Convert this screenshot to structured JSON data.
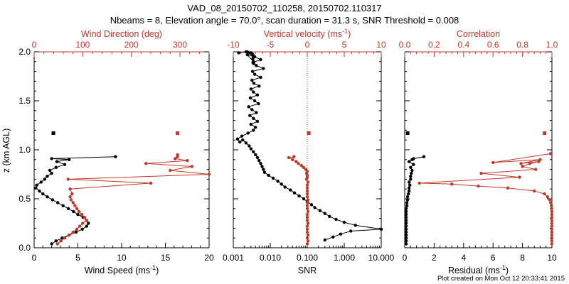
{
  "title": {
    "line1": "VAD_08_20150702_110258, 20150702.110317",
    "line2": "Nbeams = 8, Elevation angle = 70.0°, scan duration = 31.3 s, SNR Threshold = 0.008"
  },
  "footer": "Plot created on Mon Oct 12 20:33:41 2015",
  "colors": {
    "black": "#000000",
    "red": "#c0392b"
  },
  "chart_data": [
    {
      "type": "line",
      "panel": "wind",
      "ylabel": "z (km AGL)",
      "ylim": [
        0,
        2
      ],
      "yticks": [
        "0.0",
        "0.5",
        "1.0",
        "1.5",
        "2.0"
      ],
      "bottom_axis": {
        "label": "Wind Speed (ms",
        "sup": "-1",
        "close": ")",
        "lim": [
          0,
          20
        ],
        "ticks": [
          "0",
          "5",
          "10",
          "15",
          "20"
        ]
      },
      "top_axis": {
        "label": "Wind Direction (deg)",
        "lim": [
          0,
          360
        ],
        "ticks": [
          "0",
          "100",
          "200",
          "300"
        ]
      },
      "series": [
        {
          "name": "Wind Speed",
          "axis": "bottom",
          "color": "black",
          "x": [
            2.0,
            2.5,
            3.2,
            4.0,
            4.8,
            5.5,
            6.0,
            6.2,
            6.0,
            5.6,
            5.0,
            4.5,
            3.9,
            3.3,
            2.7,
            2.1,
            1.5,
            1.0,
            0.6,
            0.2,
            0.3,
            0.8,
            1.2,
            1.5,
            2.0,
            1.8,
            2.5,
            3.5,
            2.6,
            4.0,
            2.0,
            9.3
          ],
          "y": [
            0.04,
            0.07,
            0.1,
            0.13,
            0.16,
            0.19,
            0.22,
            0.25,
            0.28,
            0.31,
            0.34,
            0.37,
            0.4,
            0.43,
            0.46,
            0.49,
            0.52,
            0.55,
            0.58,
            0.61,
            0.64,
            0.67,
            0.7,
            0.73,
            0.76,
            0.79,
            0.82,
            0.85,
            0.88,
            0.9,
            0.91,
            0.93
          ],
          "outlier": {
            "x": 2.2,
            "y": 1.17
          }
        },
        {
          "name": "Wind Direction",
          "axis": "top",
          "color": "red",
          "x": [
            48,
            55,
            63,
            72,
            80,
            88,
            94,
            100,
            108,
            104,
            98,
            92,
            88,
            84,
            80,
            76,
            74,
            78,
            74,
            240,
            70,
            360,
            280,
            325,
            230,
            315,
            290,
            295,
            295
          ],
          "y": [
            0.04,
            0.07,
            0.1,
            0.13,
            0.16,
            0.19,
            0.22,
            0.25,
            0.28,
            0.31,
            0.34,
            0.37,
            0.4,
            0.43,
            0.46,
            0.49,
            0.52,
            0.55,
            0.6,
            0.66,
            0.7,
            0.75,
            0.79,
            0.83,
            0.86,
            0.89,
            0.91,
            0.93,
            0.95
          ],
          "outlier": {
            "x": 295,
            "y": 1.17
          }
        }
      ]
    },
    {
      "type": "line",
      "panel": "snr",
      "ylim": [
        0,
        2
      ],
      "bottom_axis": {
        "label": "SNR",
        "scale": "log",
        "lim": [
          0.001,
          10
        ],
        "ticks": [
          "0.001",
          "0.010",
          "0.100",
          "1.000",
          "10.000"
        ]
      },
      "top_axis": {
        "label": "Vertical velocity (ms",
        "sup": "-1",
        "close": ")",
        "lim": [
          -10,
          10
        ],
        "ticks": [
          "-10",
          "-5",
          "0",
          "5",
          "10"
        ],
        "zero_line": true
      },
      "series": [
        {
          "name": "SNR",
          "axis": "bottom",
          "color": "black",
          "x": [
            0.3,
            0.5,
            0.8,
            1.5,
            10,
            2.0,
            1.0,
            0.6,
            0.4,
            0.3,
            0.22,
            0.16,
            0.13,
            0.1,
            0.08,
            0.06,
            0.045,
            0.035,
            0.025,
            0.02,
            0.016,
            0.012,
            0.009,
            0.007,
            0.0065,
            0.006,
            0.0055,
            0.005,
            0.0045,
            0.004,
            0.0035,
            0.003,
            0.0027,
            0.0022,
            0.0018,
            0.0015,
            0.0013,
            0.0017,
            0.0025,
            0.0035,
            0.004,
            0.003,
            0.0045,
            0.0035,
            0.0028,
            0.0042,
            0.0032,
            0.0026,
            0.0048,
            0.0038,
            0.0029,
            0.0045,
            0.0035,
            0.003,
            0.005,
            0.0036,
            0.0032,
            0.0055,
            0.0038,
            0.0033,
            0.0065,
            0.0042,
            0.0034,
            0.0055,
            0.0038,
            0.0024,
            0.0035,
            0.0036,
            0.0034,
            0.0035,
            0.0034,
            0.0034,
            0.0032,
            0.003,
            0.0028,
            0.0024,
            0.0022,
            0.0014
          ],
          "y": [
            0.08,
            0.11,
            0.14,
            0.17,
            0.19,
            0.23,
            0.26,
            0.29,
            0.32,
            0.35,
            0.38,
            0.41,
            0.44,
            0.47,
            0.5,
            0.53,
            0.56,
            0.59,
            0.62,
            0.65,
            0.68,
            0.71,
            0.74,
            0.77,
            0.8,
            0.83,
            0.86,
            0.89,
            0.92,
            0.95,
            0.98,
            1.01,
            1.04,
            1.07,
            1.1,
            1.08,
            1.11,
            1.14,
            1.17,
            1.2,
            1.23,
            1.26,
            1.29,
            1.32,
            1.35,
            1.38,
            1.41,
            1.44,
            1.47,
            1.5,
            1.53,
            1.56,
            1.59,
            1.62,
            1.65,
            1.68,
            1.71,
            1.74,
            1.77,
            1.8,
            1.83,
            1.86,
            1.89,
            1.92,
            1.95,
            1.97,
            1.9,
            1.88,
            1.93,
            1.95,
            1.96,
            1.97,
            1.98,
            1.99,
            1.99,
            2.0,
            2.0,
            1.99
          ]
        },
        {
          "name": "Vertical velocity",
          "axis": "top",
          "color": "red",
          "x": [
            0.0,
            0.1,
            0.0,
            0.1,
            0.0,
            0.0,
            0.0,
            0.1,
            0.0,
            0.0,
            0.0,
            0.1,
            0.0,
            0.0,
            0.0,
            0.1,
            0.0,
            0.0,
            0.0,
            0.0,
            0.0,
            0.1,
            -0.1,
            0.0,
            0.0,
            -0.1,
            0.0,
            -0.2,
            -0.5,
            -0.8,
            -1.2,
            -1.5,
            -2.0,
            -2.5,
            -1.8
          ],
          "y": [
            0.04,
            0.07,
            0.1,
            0.13,
            0.16,
            0.19,
            0.22,
            0.25,
            0.28,
            0.31,
            0.34,
            0.37,
            0.4,
            0.43,
            0.46,
            0.49,
            0.52,
            0.55,
            0.58,
            0.61,
            0.64,
            0.67,
            0.7,
            0.72,
            0.74,
            0.76,
            0.78,
            0.8,
            0.82,
            0.84,
            0.86,
            0.88,
            0.9,
            0.92,
            0.93
          ],
          "outlier": {
            "x": 0.2,
            "y": 1.17
          }
        }
      ]
    },
    {
      "type": "line",
      "panel": "fit",
      "ylim": [
        0,
        2
      ],
      "bottom_axis": {
        "label": "Residual (ms",
        "sup": "-1",
        "close": ")",
        "lim": [
          0,
          10
        ],
        "ticks": [
          "0",
          "2",
          "4",
          "6",
          "8",
          "10"
        ]
      },
      "top_axis": {
        "label": "Correlation",
        "lim": [
          0,
          1
        ],
        "ticks": [
          "0.0",
          "0.2",
          "0.4",
          "0.6",
          "0.8",
          "1.0"
        ]
      },
      "series": [
        {
          "name": "Residual",
          "axis": "bottom",
          "color": "black",
          "x": [
            0.1,
            0.1,
            0.1,
            0.1,
            0.1,
            0.1,
            0.1,
            0.1,
            0.1,
            0.1,
            0.1,
            0.1,
            0.1,
            0.15,
            0.15,
            0.2,
            0.2,
            0.25,
            0.3,
            0.3,
            0.35,
            0.3,
            0.4,
            0.4,
            0.45,
            0.5,
            0.4,
            0.6,
            0.3,
            0.5,
            0.6,
            1.3
          ],
          "y": [
            0.04,
            0.07,
            0.1,
            0.13,
            0.16,
            0.19,
            0.22,
            0.25,
            0.28,
            0.31,
            0.34,
            0.37,
            0.4,
            0.43,
            0.46,
            0.49,
            0.52,
            0.55,
            0.58,
            0.61,
            0.64,
            0.67,
            0.7,
            0.73,
            0.76,
            0.79,
            0.82,
            0.85,
            0.88,
            0.9,
            0.91,
            0.93
          ],
          "outlier": {
            "x": 0.2,
            "y": 1.17
          }
        },
        {
          "name": "Correlation",
          "axis": "top",
          "color": "red",
          "x": [
            0.999,
            0.999,
            0.999,
            0.999,
            0.999,
            0.999,
            0.999,
            0.999,
            0.999,
            0.999,
            0.999,
            0.999,
            0.998,
            0.996,
            0.992,
            0.985,
            0.97,
            0.95,
            0.88,
            0.7,
            0.5,
            0.32,
            0.1,
            0.78,
            0.52,
            0.89,
            0.8,
            0.85,
            0.91,
            0.79,
            0.92,
            0.6,
            0.99
          ],
          "y": [
            0.04,
            0.07,
            0.1,
            0.13,
            0.16,
            0.19,
            0.22,
            0.25,
            0.28,
            0.31,
            0.34,
            0.37,
            0.4,
            0.43,
            0.46,
            0.49,
            0.52,
            0.55,
            0.58,
            0.61,
            0.63,
            0.65,
            0.66,
            0.72,
            0.76,
            0.8,
            0.83,
            0.86,
            0.88,
            0.86,
            0.9,
            0.87,
            0.96
          ],
          "outlier": {
            "x": 0.95,
            "y": 1.17
          }
        }
      ]
    }
  ]
}
